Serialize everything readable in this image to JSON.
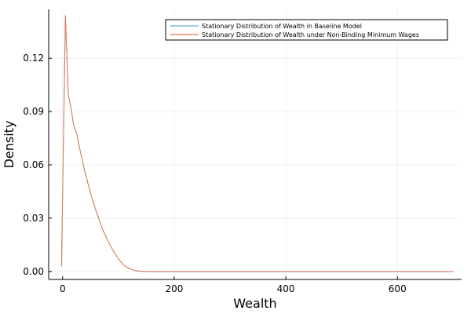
{
  "chart_data": {
    "type": "line",
    "xlabel": "Wealth",
    "ylabel": "Density",
    "xlim": [
      -25,
      715
    ],
    "ylim": [
      -0.0045,
      0.1475
    ],
    "xticks": [
      0,
      200,
      400,
      600
    ],
    "xtick_labels": [
      "0",
      "200",
      "400",
      "600"
    ],
    "yticks": [
      0.0,
      0.03,
      0.06,
      0.09,
      0.12
    ],
    "ytick_labels": [
      "0.00",
      "0.03",
      "0.06",
      "0.09",
      "0.12"
    ],
    "grid": true,
    "legend_position": "top-right",
    "series": [
      {
        "name": "Stationary Distribution of Wealth in Baseline Model",
        "color": "#6baed6",
        "x": [
          -2,
          5,
          10,
          15,
          20,
          25,
          30,
          40,
          50,
          60,
          70,
          80,
          90,
          100,
          110,
          120,
          130,
          140,
          150,
          200,
          300,
          400,
          500,
          600,
          700
        ],
        "y": [
          0.003,
          0.144,
          0.1,
          0.092,
          0.082,
          0.078,
          0.07,
          0.056,
          0.044,
          0.034,
          0.025,
          0.018,
          0.012,
          0.007,
          0.0035,
          0.0015,
          0.0005,
          0.0001,
          0.0,
          0.0,
          0.0,
          0.0,
          0.0,
          0.0,
          0.0
        ]
      },
      {
        "name": "Stationary Distribution of Wealth under Non-Binding Minimum Wages",
        "color": "#e07b54",
        "x": [
          -2,
          5,
          10,
          15,
          20,
          25,
          30,
          40,
          50,
          60,
          70,
          80,
          90,
          100,
          110,
          120,
          130,
          140,
          150,
          200,
          300,
          400,
          500,
          600,
          700
        ],
        "y": [
          0.003,
          0.144,
          0.1,
          0.092,
          0.082,
          0.078,
          0.07,
          0.056,
          0.044,
          0.034,
          0.025,
          0.018,
          0.012,
          0.007,
          0.0035,
          0.0015,
          0.0005,
          0.0001,
          0.0,
          0.0,
          0.0,
          0.0,
          0.0,
          0.0,
          0.0
        ]
      }
    ]
  }
}
